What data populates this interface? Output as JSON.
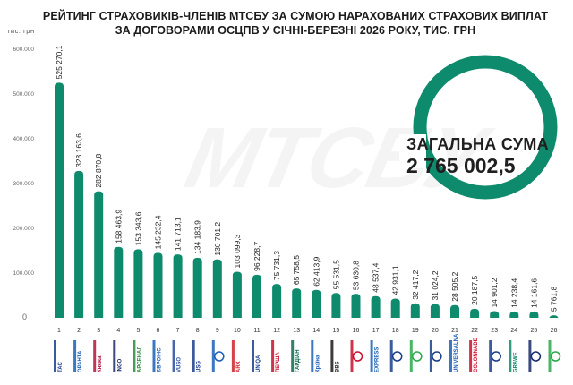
{
  "title": {
    "line1": "РЕЙТИНГ СТРАХОВИКІВ-ЧЛЕНІВ МТСБУ ЗА СУМОЮ НАРАХОВАНИХ СТРАХОВИХ ВИПЛАТ",
    "line2": "ЗА ДОГОВОРАМИ ОСЦПВ У СІЧНІ-БЕРЕЗНІ 2026 РОКУ, ТИС. ГРН"
  },
  "unit_label": "тис. грн",
  "watermark": "МТСБУ",
  "total": {
    "label": "ЗАГАЛЬНА СУМА",
    "value": "2 765 002,5"
  },
  "colors": {
    "bar": "#0e8a6c",
    "ring": "#0e8a6c",
    "text": "#1f1f1f"
  },
  "chart_data": {
    "type": "bar",
    "title": "РЕЙТИНГ СТРАХОВИКІВ-ЧЛЕНІВ МТСБУ ЗА СУМОЮ НАРАХОВАНИХ СТРАХОВИХ ВИПЛАТ ЗА ДОГОВОРАМИ ОСЦПВ У СІЧНІ-БЕРЕЗНІ 2026 РОКУ, ТИС. ГРН",
    "ylabel": "тис. грн",
    "ylim": [
      0,
      600000
    ],
    "yticks": [
      {
        "value": 0,
        "label": "0"
      },
      {
        "value": 100000,
        "label": "100.000"
      },
      {
        "value": 200000,
        "label": "200.000"
      },
      {
        "value": 300000,
        "label": "300.000"
      },
      {
        "value": 400000,
        "label": "400.000"
      },
      {
        "value": 500000,
        "label": "500.000"
      },
      {
        "value": 600000,
        "label": "600.000"
      }
    ],
    "grid": false,
    "categories": [
      "1",
      "2",
      "3",
      "4",
      "5",
      "6",
      "7",
      "8",
      "9",
      "10",
      "11",
      "12",
      "13",
      "14",
      "15",
      "16",
      "17",
      "18",
      "19",
      "20",
      "21",
      "22",
      "23",
      "24",
      "25",
      "26"
    ],
    "values": [
      525270.1,
      328163.6,
      282870.8,
      158463.9,
      153343.6,
      145232.4,
      141713.1,
      134183.9,
      130701.2,
      103099.3,
      96228.7,
      75731.3,
      65758.5,
      62413.9,
      55531.5,
      53630.8,
      48537.4,
      42931.1,
      32417.2,
      31024.2,
      28505.2,
      20187.5,
      14901.2,
      14238.4,
      14161.6,
      5761.8
    ],
    "value_labels": [
      "525 270,1",
      "328 163,6",
      "282 870,8",
      "158 463,9",
      "153 343,6",
      "145 232,4",
      "141 713,1",
      "134 183,9",
      "130 701,2",
      "103 099,3",
      "96 228,7",
      "75 731,3",
      "65 758,5",
      "62 413,9",
      "55 531,5",
      "53 630,8",
      "48 537,4",
      "42 931,1",
      "32 417,2",
      "31 024,2",
      "28 505,2",
      "20 187,5",
      "14 901,2",
      "14 238,4",
      "14 161,6",
      "5 761,8"
    ]
  },
  "logos": [
    {
      "name": "tas-logo",
      "text": "ТАС",
      "color": "#1a3e8c"
    },
    {
      "name": "oranta-logo",
      "text": "ОРАНТА",
      "color": "#1b5fb5"
    },
    {
      "name": "knyazha-logo",
      "text": "Княжа",
      "color": "#b3123a"
    },
    {
      "name": "ingo-logo",
      "text": "INGO",
      "color": "#1a2a6c"
    },
    {
      "name": "arsenal-logo",
      "text": "АРСЕНАЛ",
      "color": "#2a8a3a"
    },
    {
      "name": "evrolis-logo",
      "text": "ЄВРОІНС",
      "color": "#1b5fb5"
    },
    {
      "name": "vuso-logo",
      "text": "VUSO",
      "color": "#2a4a9c"
    },
    {
      "name": "usg-logo",
      "text": "USG",
      "color": "#1a3e8c"
    },
    {
      "name": "insurer-9-logo",
      "text": "",
      "color": "#1b5fb5"
    },
    {
      "name": "arx-logo",
      "text": "ARX",
      "color": "#d0202a"
    },
    {
      "name": "uniqa-logo",
      "text": "UNIQA",
      "color": "#1a3e8c"
    },
    {
      "name": "persha-logo",
      "text": "ПЕРША",
      "color": "#c8102e"
    },
    {
      "name": "gardian-logo",
      "text": "ГАРДІАН",
      "color": "#0e6a4c"
    },
    {
      "name": "kraina-logo",
      "text": "Країна",
      "color": "#1b5fb5"
    },
    {
      "name": "bbs-logo",
      "text": "BBS",
      "color": "#1a1a1a"
    },
    {
      "name": "insurer-16-logo",
      "text": "",
      "color": "#c8102e"
    },
    {
      "name": "express-logo",
      "text": "EXPRESS",
      "color": "#1b5fb5"
    },
    {
      "name": "insurer-18-logo",
      "text": "",
      "color": "#1a3e8c"
    },
    {
      "name": "colonnade-green-logo",
      "text": "",
      "color": "#2aa84a"
    },
    {
      "name": "insurer-20-logo",
      "text": "",
      "color": "#1a3e8c"
    },
    {
      "name": "universalna-logo",
      "text": "UNIVERSALNA",
      "color": "#1b5fb5"
    },
    {
      "name": "colonnade-logo",
      "text": "COLONNADE",
      "color": "#c8102e"
    },
    {
      "name": "insurer-23-logo",
      "text": "",
      "color": "#1a3e8c"
    },
    {
      "name": "grawe-logo",
      "text": "GRAWE",
      "color": "#0e8a6c"
    },
    {
      "name": "insurer-25-logo",
      "text": "",
      "color": "#1a2a6c"
    },
    {
      "name": "insurer-26-logo",
      "text": "",
      "color": "#2aa84a"
    }
  ]
}
